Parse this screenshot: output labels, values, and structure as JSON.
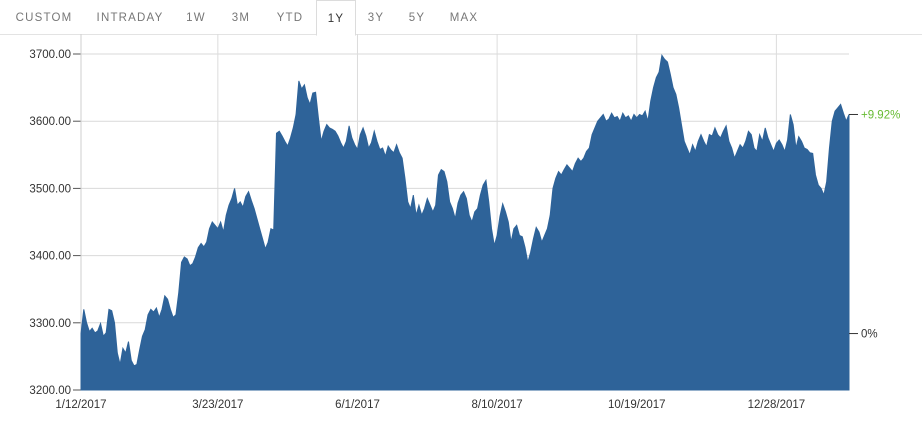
{
  "tabs": [
    {
      "label": "CUSTOM",
      "active": false
    },
    {
      "label": "INTRADAY",
      "active": false
    },
    {
      "label": "1W",
      "active": false
    },
    {
      "label": "3M",
      "active": false
    },
    {
      "label": "YTD",
      "active": false
    },
    {
      "label": "1Y",
      "active": true
    },
    {
      "label": "3Y",
      "active": false
    },
    {
      "label": "5Y",
      "active": false
    },
    {
      "label": "MAX",
      "active": false
    }
  ],
  "chart_data": {
    "type": "area",
    "title": "",
    "xlabel": "",
    "ylabel": "",
    "ylim": [
      3200,
      3700
    ],
    "ytick_labels": [
      "3700.00",
      "3600.00",
      "3500.00",
      "3400.00",
      "3300.00",
      "3200.00"
    ],
    "ytick_values": [
      3700,
      3600,
      3500,
      3400,
      3300,
      3200
    ],
    "xtick_labels": [
      "1/12/2017",
      "3/23/2017",
      "6/1/2017",
      "8/10/2017",
      "10/19/2017",
      "12/28/2017"
    ],
    "xtick_index": [
      0,
      49,
      99,
      149,
      199,
      249
    ],
    "grid": true,
    "fill_color": "#2e6399",
    "change_color": "#66bb33",
    "markers": [
      {
        "label": "+9.92%",
        "value": 3610,
        "color": "#66bb33"
      },
      {
        "label": "0%",
        "value": 3284,
        "color": "#333333"
      }
    ],
    "series": [
      {
        "values": [
          3284,
          3320,
          3300,
          3287,
          3292,
          3285,
          3288,
          3299,
          3280,
          3285,
          3320,
          3318,
          3300,
          3255,
          3238,
          3262,
          3255,
          3272,
          3244,
          3236,
          3238,
          3260,
          3280,
          3290,
          3312,
          3320,
          3316,
          3322,
          3308,
          3320,
          3340,
          3335,
          3320,
          3308,
          3312,
          3345,
          3390,
          3398,
          3395,
          3385,
          3388,
          3398,
          3412,
          3418,
          3413,
          3420,
          3440,
          3450,
          3445,
          3440,
          3450,
          3435,
          3460,
          3475,
          3485,
          3500,
          3475,
          3480,
          3472,
          3488,
          3495,
          3482,
          3470,
          3455,
          3440,
          3425,
          3410,
          3420,
          3440,
          3438,
          3582,
          3585,
          3578,
          3570,
          3563,
          3575,
          3590,
          3610,
          3660,
          3648,
          3654,
          3635,
          3625,
          3642,
          3643,
          3605,
          3570,
          3585,
          3595,
          3590,
          3588,
          3585,
          3578,
          3568,
          3560,
          3570,
          3593,
          3575,
          3565,
          3558,
          3580,
          3590,
          3578,
          3560,
          3568,
          3585,
          3570,
          3558,
          3560,
          3548,
          3563,
          3557,
          3553,
          3565,
          3553,
          3545,
          3515,
          3480,
          3470,
          3490,
          3460,
          3475,
          3460,
          3470,
          3485,
          3475,
          3465,
          3475,
          3520,
          3528,
          3525,
          3510,
          3480,
          3470,
          3455,
          3478,
          3490,
          3495,
          3485,
          3460,
          3450,
          3465,
          3470,
          3490,
          3505,
          3512,
          3480,
          3440,
          3415,
          3430,
          3458,
          3477,
          3465,
          3450,
          3420,
          3440,
          3445,
          3430,
          3428,
          3412,
          3390,
          3405,
          3425,
          3442,
          3435,
          3420,
          3430,
          3440,
          3460,
          3500,
          3515,
          3525,
          3520,
          3528,
          3535,
          3530,
          3525,
          3537,
          3545,
          3540,
          3545,
          3555,
          3560,
          3580,
          3590,
          3600,
          3605,
          3610,
          3600,
          3603,
          3612,
          3605,
          3607,
          3600,
          3612,
          3605,
          3608,
          3600,
          3610,
          3605,
          3610,
          3608,
          3615,
          3600,
          3630,
          3650,
          3665,
          3673,
          3698,
          3692,
          3688,
          3670,
          3650,
          3640,
          3620,
          3595,
          3570,
          3560,
          3550,
          3565,
          3555,
          3570,
          3580,
          3570,
          3562,
          3580,
          3578,
          3590,
          3580,
          3575,
          3585,
          3593,
          3570,
          3560,
          3545,
          3555,
          3565,
          3560,
          3570,
          3585,
          3580,
          3560,
          3555,
          3580,
          3570,
          3590,
          3575,
          3565,
          3555,
          3567,
          3572,
          3565,
          3555,
          3572,
          3610,
          3595,
          3560,
          3577,
          3570,
          3560,
          3558,
          3553,
          3552,
          3520,
          3505,
          3500,
          3490,
          3510,
          3560,
          3600,
          3615,
          3620,
          3625,
          3612,
          3600,
          3610
        ]
      }
    ]
  }
}
